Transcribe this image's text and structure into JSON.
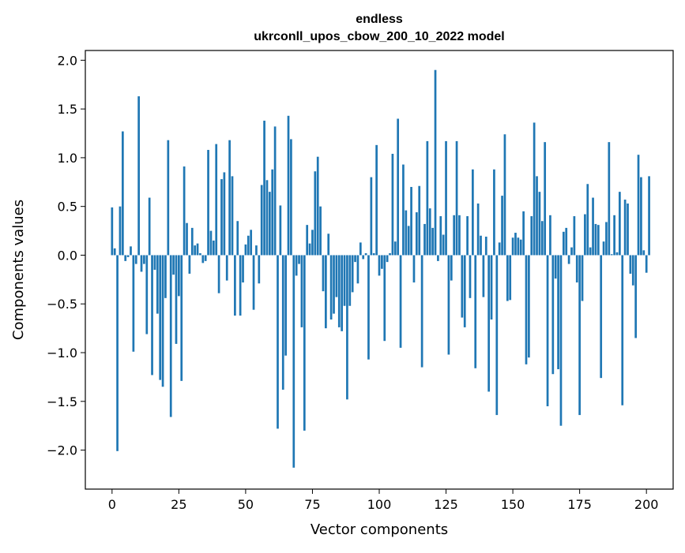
{
  "chart_data": {
    "type": "bar",
    "title": "endless",
    "subtitle": "ukrconll_upos_cbow_200_10_2022 model",
    "xlabel": "Vector components",
    "ylabel": "Components values",
    "xlim": [
      -10,
      210
    ],
    "ylim": [
      -2.4,
      2.1
    ],
    "xticks": [
      0,
      25,
      50,
      75,
      100,
      125,
      150,
      175,
      200
    ],
    "yticks": [
      -2.0,
      -1.5,
      -1.0,
      -0.5,
      0.0,
      0.5,
      1.0,
      1.5,
      2.0
    ],
    "xtick_labels": [
      "0",
      "25",
      "50",
      "75",
      "100",
      "125",
      "150",
      "175",
      "200"
    ],
    "ytick_labels": [
      "−2.0",
      "−1.5",
      "−1.0",
      "−0.5",
      "0.0",
      "0.5",
      "1.0",
      "1.5",
      "2.0"
    ],
    "grid": false,
    "bar_color": "#1f77b4",
    "values": [
      0.49,
      0.07,
      -2.01,
      0.5,
      1.27,
      -0.06,
      -0.02,
      0.09,
      -0.99,
      -0.09,
      1.63,
      -0.17,
      -0.09,
      -0.81,
      0.59,
      -1.23,
      -0.15,
      -0.6,
      -1.28,
      -1.35,
      -0.44,
      1.18,
      -1.66,
      -0.2,
      -0.91,
      -0.42,
      -1.29,
      0.91,
      0.33,
      -0.19,
      0.28,
      0.1,
      0.12,
      0.02,
      -0.08,
      -0.06,
      1.08,
      0.25,
      0.15,
      1.14,
      -0.39,
      0.78,
      0.85,
      -0.26,
      1.18,
      0.81,
      -0.62,
      0.35,
      -0.62,
      -0.28,
      0.11,
      0.2,
      0.26,
      -0.56,
      0.1,
      -0.29,
      0.72,
      1.38,
      0.77,
      0.65,
      0.88,
      1.32,
      -1.78,
      0.51,
      -1.38,
      -1.03,
      1.43,
      1.19,
      -2.18,
      -0.21,
      -0.09,
      -0.74,
      -1.8,
      0.31,
      0.12,
      0.26,
      0.86,
      1.01,
      0.5,
      -0.37,
      -0.75,
      0.22,
      -0.66,
      -0.6,
      -0.43,
      -0.74,
      -0.78,
      -0.52,
      -1.48,
      -0.52,
      -0.38,
      -0.07,
      -0.29,
      0.13,
      -0.04,
      0.02,
      -1.07,
      0.8,
      0.02,
      1.13,
      -0.21,
      -0.14,
      -0.88,
      -0.07,
      0.02,
      1.04,
      0.14,
      1.4,
      -0.95,
      0.93,
      0.46,
      0.3,
      0.7,
      -0.28,
      0.44,
      0.71,
      -1.15,
      0.32,
      1.17,
      0.48,
      0.28,
      1.9,
      -0.06,
      0.4,
      0.21,
      1.17,
      -1.02,
      -0.26,
      0.41,
      1.17,
      0.41,
      -0.64,
      -0.74,
      0.4,
      -0.44,
      0.88,
      -1.16,
      0.53,
      0.2,
      -0.43,
      0.19,
      -1.4,
      -0.66,
      0.88,
      -1.64,
      0.13,
      0.61,
      1.24,
      -0.47,
      -0.46,
      0.18,
      0.23,
      0.18,
      0.16,
      0.45,
      -1.12,
      -1.05,
      0.4,
      1.36,
      0.81,
      0.65,
      0.35,
      1.16,
      -1.55,
      0.41,
      -1.22,
      -0.24,
      -1.17,
      -1.75,
      0.24,
      0.28,
      -0.09,
      0.08,
      0.4,
      -0.28,
      -1.64,
      -0.47,
      0.42,
      0.73,
      0.08,
      0.59,
      0.32,
      0.31,
      -1.26,
      0.14,
      0.34,
      1.16,
      0.01,
      0.41,
      0.03,
      0.65,
      -1.54,
      0.57,
      0.53,
      -0.19,
      -0.31,
      -0.85,
      1.03,
      0.8,
      0.05,
      -0.18,
      0.81
    ]
  }
}
